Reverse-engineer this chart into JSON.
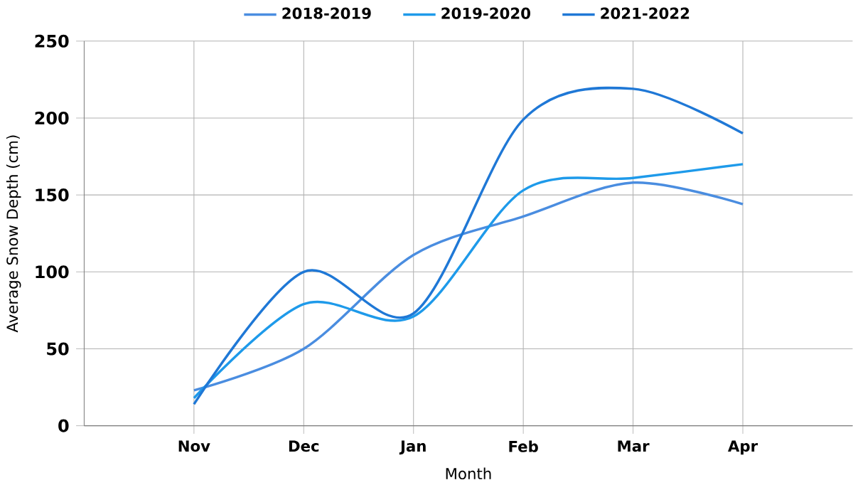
{
  "chart_data": {
    "type": "line",
    "xlabel": "Month",
    "ylabel": "Average Snow Depth (cm)",
    "categories": [
      "Nov",
      "Dec",
      "Jan",
      "Feb",
      "Mar",
      "Apr"
    ],
    "series": [
      {
        "name": "2018-2019",
        "color": "#4a8de0",
        "values": [
          23,
          50,
          111,
          136,
          158,
          144
        ]
      },
      {
        "name": "2019-2020",
        "color": "#1e9aea",
        "values": [
          18,
          79,
          71,
          153,
          161,
          170
        ]
      },
      {
        "name": "2021-2022",
        "color": "#1f78d6",
        "values": [
          14,
          100,
          73,
          199,
          219,
          190
        ]
      }
    ],
    "ylim": [
      0,
      250
    ],
    "yticks": [
      0,
      50,
      100,
      150,
      200,
      250
    ],
    "grid": true,
    "legend": "top",
    "marker": "none",
    "line_style": "solid"
  }
}
